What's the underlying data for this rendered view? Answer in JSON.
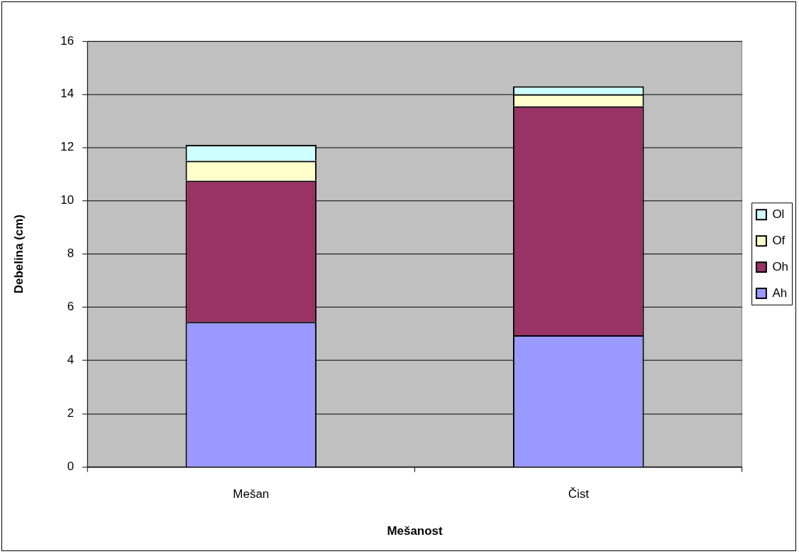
{
  "chart_data": {
    "type": "bar",
    "xlabel": "Mešanost",
    "ylabel": "Debelina (cm)",
    "categories": [
      "Mešan",
      "Čist"
    ],
    "series": [
      {
        "name": "Ah",
        "color": "#9999ff",
        "values": [
          5.45,
          4.95
        ]
      },
      {
        "name": "Oh",
        "color": "#993366",
        "values": [
          5.3,
          8.6
        ]
      },
      {
        "name": "Of",
        "color": "#ffffcc",
        "values": [
          0.75,
          0.45
        ]
      },
      {
        "name": "Ol",
        "color": "#ccffff",
        "values": [
          0.6,
          0.3
        ]
      }
    ],
    "stacked": true,
    "ylim": [
      0,
      16
    ],
    "yticks": [
      0,
      2,
      4,
      6,
      8,
      10,
      12,
      14,
      16
    ],
    "grid": "y",
    "legend": "right"
  }
}
